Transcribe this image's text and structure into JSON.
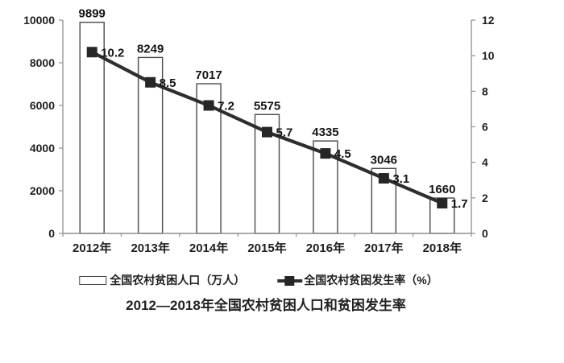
{
  "chart_data": {
    "type": "bar+line",
    "title": "2012—2018年全国农村贫困人口和贫困发生率",
    "categories": [
      "2012年",
      "2013年",
      "2014年",
      "2015年",
      "2016年",
      "2017年",
      "2018年"
    ],
    "series": [
      {
        "name": "全国农村贫困人口（万人）",
        "type": "bar",
        "axis": "left",
        "values": [
          9899,
          8249,
          7017,
          5575,
          4335,
          3046,
          1660
        ]
      },
      {
        "name": "全国农村贫困发生率（%）",
        "type": "line",
        "axis": "right",
        "values": [
          10.2,
          8.5,
          7.2,
          5.7,
          4.5,
          3.1,
          1.7
        ]
      }
    ],
    "left_axis": {
      "min": 0,
      "max": 10000,
      "step": 2000,
      "tick_labels": [
        "0",
        "2000",
        "4000",
        "6000",
        "8000",
        "10000"
      ]
    },
    "right_axis": {
      "min": 0,
      "max": 12,
      "step": 2,
      "tick_labels": [
        "0",
        "2",
        "4",
        "6",
        "8",
        "10",
        "12"
      ]
    },
    "grid": false,
    "data_labels": true,
    "legend_position": "bottom",
    "colors": {
      "background": "#ffffff",
      "bar_fill": "#ffffff",
      "bar_border": "#4a4a4a",
      "line": "#2e2e2e",
      "marker": "#262626",
      "axis": "#8f8f8f",
      "text": "#1f1f1f"
    }
  }
}
